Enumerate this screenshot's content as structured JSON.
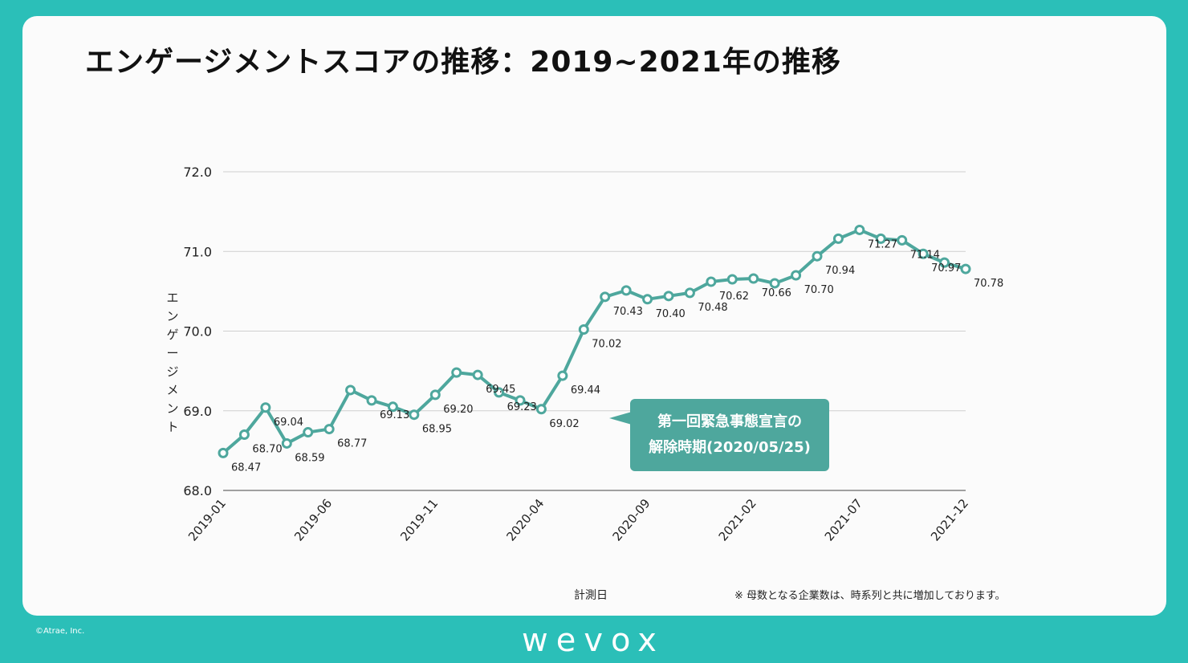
{
  "title": "エンゲージメントスコアの推移：2019~2021年の推移",
  "ylabel": "エンゲージメント",
  "xlabel": "計測日",
  "note": "※ 母数となる企業数は、時系列と共に増加しております。",
  "callout": {
    "line1": "第一回緊急事態宣言の",
    "line2": "解除時期(2020/05/25)"
  },
  "copyright": "©Atrae, Inc.",
  "logo": "wevox",
  "colors": {
    "background": "#2bbfb8",
    "line": "#4ea79d",
    "callout": "#4ea79d"
  },
  "chart_data": {
    "type": "line",
    "x": [
      "2019-01",
      "2019-02",
      "2019-03",
      "2019-04",
      "2019-05",
      "2019-06",
      "2019-07",
      "2019-08",
      "2019-09",
      "2019-10",
      "2019-11",
      "2019-12",
      "2020-01",
      "2020-02",
      "2020-03",
      "2020-04",
      "2020-05",
      "2020-06",
      "2020-07",
      "2020-08",
      "2020-09",
      "2020-10",
      "2020-11",
      "2020-12",
      "2021-01",
      "2021-02",
      "2021-03",
      "2021-04",
      "2021-05",
      "2021-06",
      "2021-07",
      "2021-08",
      "2021-09",
      "2021-10",
      "2021-11",
      "2021-12"
    ],
    "values": [
      68.47,
      68.7,
      69.04,
      68.59,
      68.73,
      68.77,
      69.26,
      69.13,
      69.05,
      68.95,
      69.2,
      69.48,
      69.45,
      69.23,
      69.13,
      69.02,
      69.44,
      70.02,
      70.43,
      70.51,
      70.4,
      70.44,
      70.48,
      70.62,
      70.65,
      70.66,
      70.6,
      70.7,
      70.94,
      71.16,
      71.27,
      71.16,
      71.14,
      70.97,
      70.86,
      70.78
    ],
    "labels": [
      "68.47",
      "68.70",
      "69.04",
      "68.59",
      "",
      "68.77",
      "",
      "69.13",
      "",
      "68.95",
      "69.20",
      "",
      "69.45",
      "69.23",
      "",
      "69.02",
      "69.44",
      "70.02",
      "70.43",
      "",
      "70.40",
      "",
      "70.48",
      "70.62",
      "",
      "70.66",
      "",
      "70.70",
      "70.94",
      "",
      "71.27",
      "",
      "71.14",
      "70.97",
      "",
      "70.78"
    ],
    "xticks": [
      "2019-01",
      "2019-06",
      "2019-11",
      "2020-04",
      "2020-09",
      "2021-02",
      "2021-07",
      "2021-12"
    ],
    "yticks": [
      "68.0",
      "69.0",
      "70.0",
      "71.0",
      "72.0"
    ],
    "ylim": [
      68.0,
      72.0
    ],
    "grid": true
  }
}
